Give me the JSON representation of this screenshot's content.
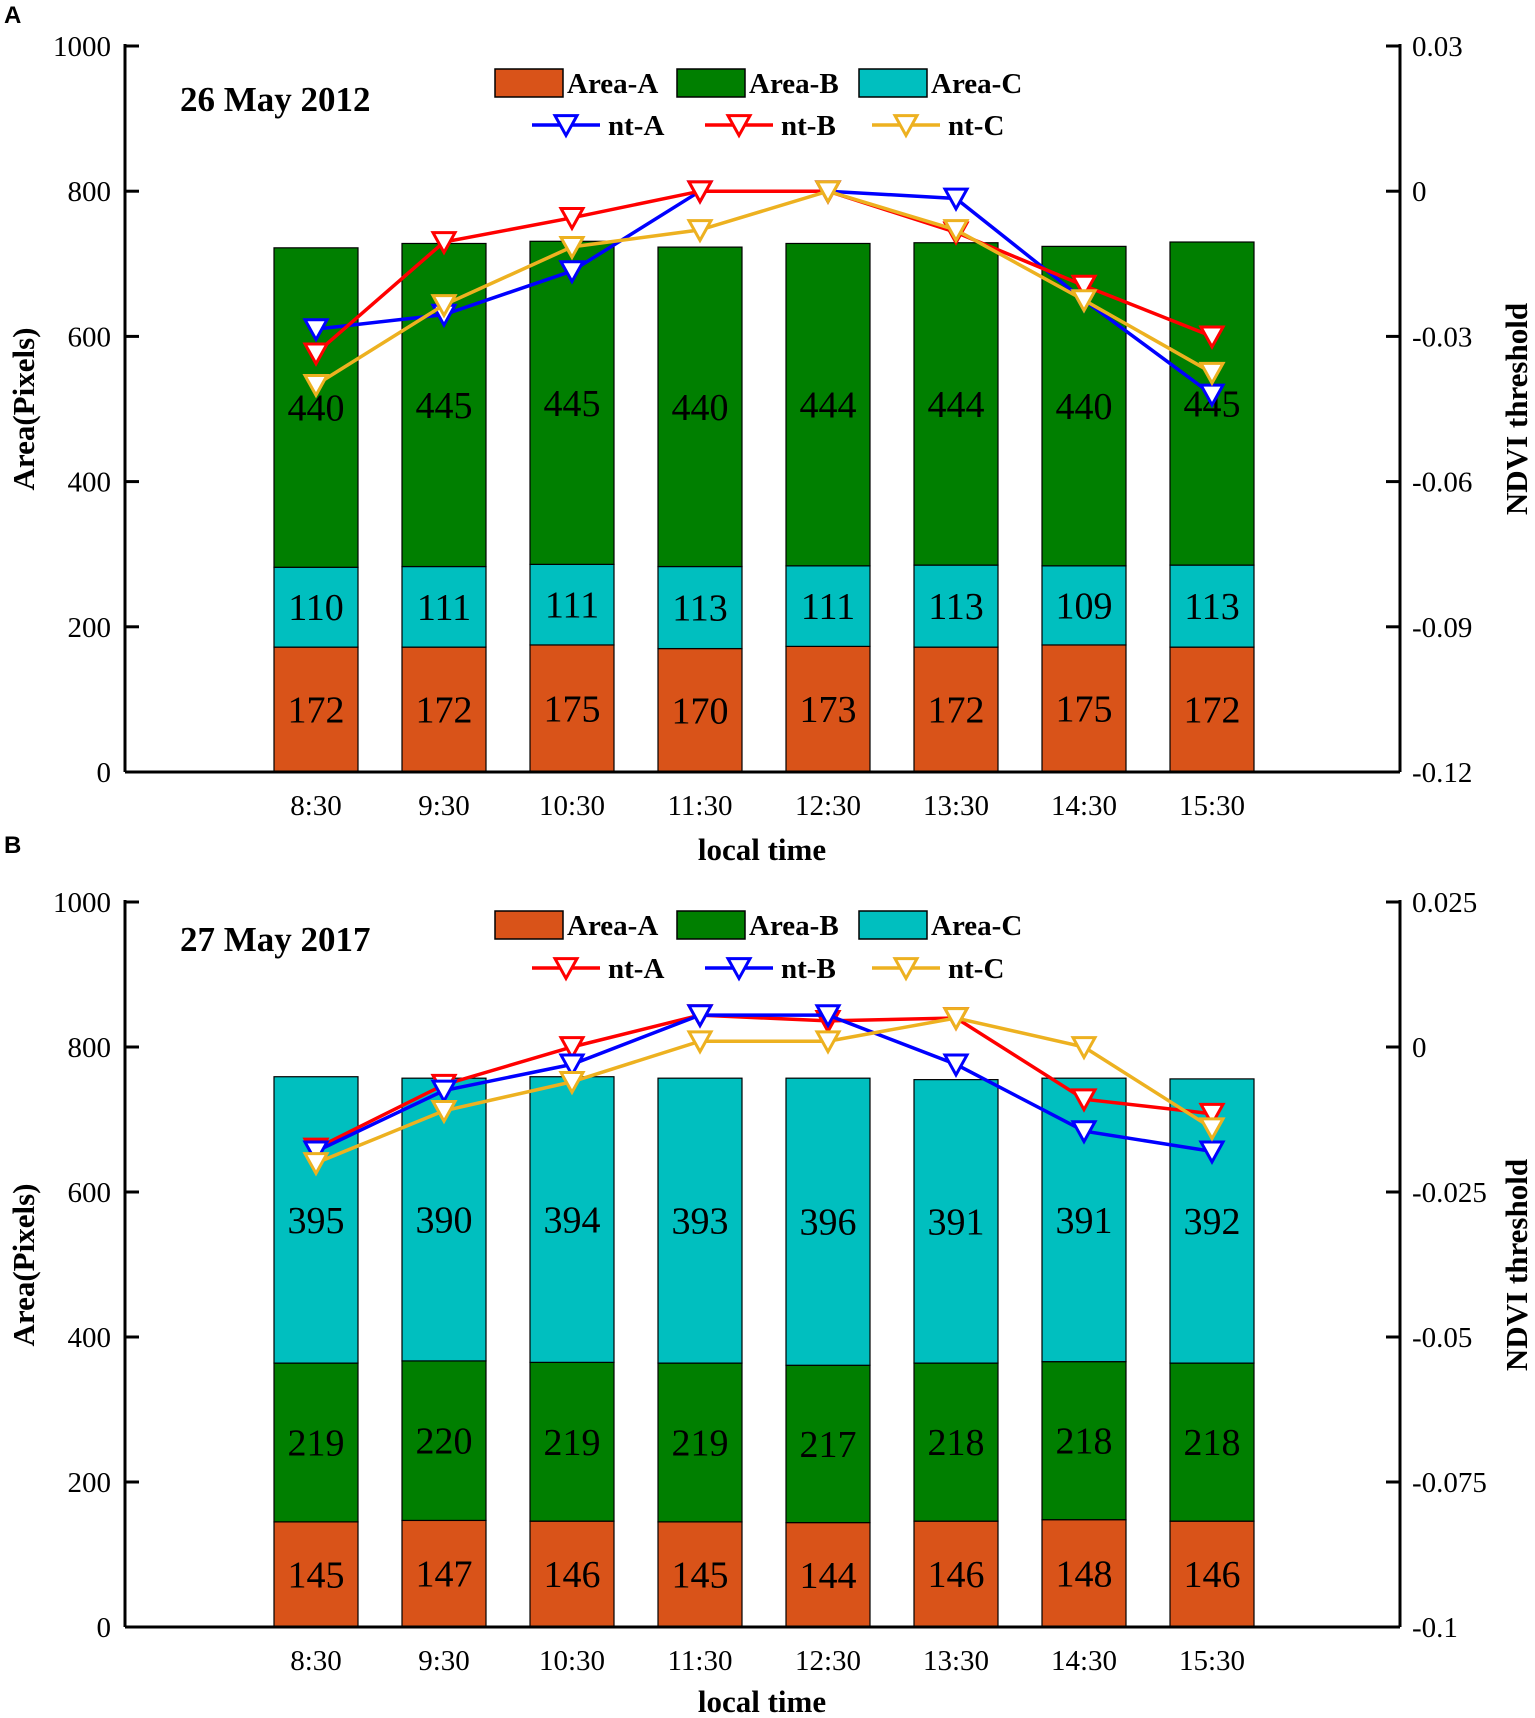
{
  "panels": [
    {
      "letter": "A"
    },
    {
      "letter": "B"
    }
  ],
  "colors": {
    "area_a": "#D95319",
    "area_b": "#007F00",
    "area_c": "#00BFBF",
    "red": "#FF0000",
    "blue": "#0000FF",
    "orange": "#EDB120"
  },
  "chart_data": [
    {
      "type": "bar",
      "stacked": true,
      "title": "26 May 2012",
      "xlabel": "local time",
      "ylabel": "Area(Pixels)",
      "y2label": "NDVI threshold",
      "categories": [
        "8:30",
        "9:30",
        "10:30",
        "11:30",
        "12:30",
        "13:30",
        "14:30",
        "15:30"
      ],
      "ylim": [
        0,
        1000
      ],
      "yticks": [
        "0",
        "200",
        "400",
        "600",
        "800",
        "1000"
      ],
      "y2lim": [
        -0.12,
        0.03
      ],
      "y2ticks": [
        "-0.12",
        "-0.09",
        "-0.06",
        "-0.03",
        "0",
        "0.03"
      ],
      "series": [
        {
          "name": "Area-A",
          "color": "#D95319",
          "values": [
            172,
            172,
            175,
            170,
            173,
            172,
            175,
            172
          ],
          "labels": [
            "172",
            "172",
            "175",
            "170",
            "173",
            "172",
            "175",
            "172"
          ]
        },
        {
          "name": "Area-C",
          "color": "#00BFBF",
          "values": [
            110,
            111,
            111,
            113,
            111,
            113,
            109,
            113
          ],
          "labels": [
            "110",
            "111",
            "111",
            "113",
            "111",
            "113",
            "109",
            "113"
          ]
        },
        {
          "name": "Area-B",
          "color": "#007F00",
          "values": [
            440,
            445,
            445,
            440,
            444,
            444,
            440,
            445
          ],
          "labels": [
            "440",
            "445",
            "445",
            "440",
            "444",
            "444",
            "440",
            "445"
          ]
        }
      ],
      "bar_legend": [
        "Area-A",
        "Area-B",
        "Area-C"
      ],
      "lines": [
        {
          "name": "nt-A",
          "color": "#0000FF",
          "values": [
            -0.0285,
            -0.0255,
            -0.0165,
            0.0,
            0.0,
            -0.0015,
            -0.0225,
            -0.042
          ]
        },
        {
          "name": "nt-B",
          "color": "#FF0000",
          "values": [
            -0.0335,
            -0.0105,
            -0.0055,
            0.0,
            0.0,
            -0.0085,
            -0.0195,
            -0.03
          ]
        },
        {
          "name": "nt-C",
          "color": "#EDB120",
          "values": [
            -0.04,
            -0.0235,
            -0.0115,
            -0.008,
            0.0,
            -0.008,
            -0.0225,
            -0.0375
          ]
        }
      ]
    },
    {
      "type": "bar",
      "stacked": true,
      "title": "27 May 2017",
      "xlabel": "local time",
      "ylabel": "Area(Pixels)",
      "y2label": "NDVI threshold",
      "categories": [
        "8:30",
        "9:30",
        "10:30",
        "11:30",
        "12:30",
        "13:30",
        "14:30",
        "15:30"
      ],
      "ylim": [
        0,
        1000
      ],
      "yticks": [
        "0",
        "200",
        "400",
        "600",
        "800",
        "1000"
      ],
      "y2lim": [
        -0.1,
        0.025
      ],
      "y2ticks": [
        "-0.1",
        "-0.075",
        "-0.05",
        "-0.025",
        "0",
        "0.025"
      ],
      "series": [
        {
          "name": "Area-A",
          "color": "#D95319",
          "values": [
            145,
            147,
            146,
            145,
            144,
            146,
            148,
            146
          ],
          "labels": [
            "145",
            "147",
            "146",
            "145",
            "144",
            "146",
            "148",
            "146"
          ]
        },
        {
          "name": "Area-B",
          "color": "#007F00",
          "values": [
            219,
            220,
            219,
            219,
            217,
            218,
            218,
            218
          ],
          "labels": [
            "219",
            "220",
            "219",
            "219",
            "217",
            "218",
            "218",
            "218"
          ]
        },
        {
          "name": "Area-C",
          "color": "#00BFBF",
          "values": [
            395,
            390,
            394,
            393,
            396,
            391,
            391,
            392
          ],
          "labels": [
            "395",
            "390",
            "394",
            "393",
            "396",
            "391",
            "391",
            "392"
          ]
        }
      ],
      "bar_legend": [
        "Area-A",
        "Area-B",
        "Area-C"
      ],
      "lines": [
        {
          "name": "nt-A",
          "color": "#FF0000",
          "values": [
            -0.0175,
            -0.0065,
            0.0,
            0.0055,
            0.0045,
            0.005,
            -0.009,
            -0.0115
          ]
        },
        {
          "name": "nt-B",
          "color": "#0000FF",
          "values": [
            -0.018,
            -0.0075,
            -0.003,
            0.0055,
            0.0055,
            -0.003,
            -0.0145,
            -0.018
          ]
        },
        {
          "name": "nt-C",
          "color": "#EDB120",
          "values": [
            -0.02,
            -0.011,
            -0.006,
            0.001,
            0.001,
            0.005,
            0.0,
            -0.014
          ]
        }
      ]
    }
  ]
}
